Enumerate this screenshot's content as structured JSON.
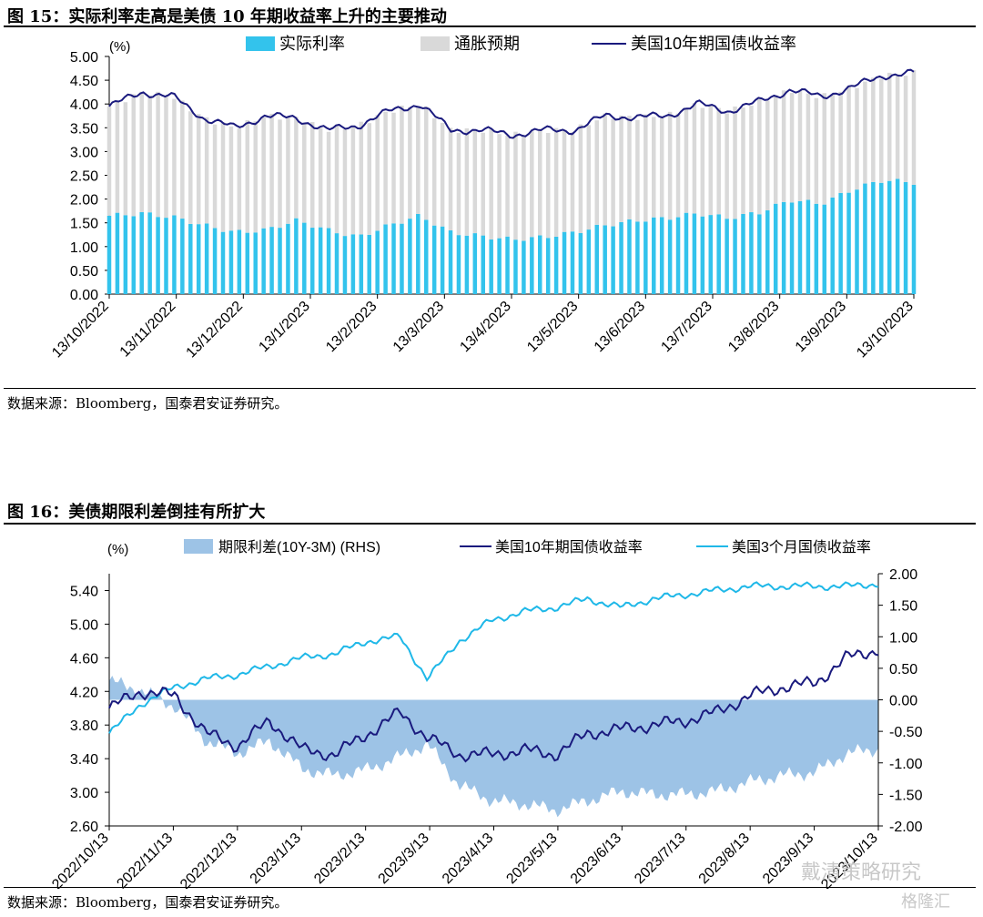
{
  "figure1": {
    "title": "图 15：实际利率走高是美债 10 年期收益率上升的主要推动",
    "source": "数据来源：Bloomberg，国泰君安证券研究。",
    "chart_data": {
      "type": "bar",
      "unit_label": "(%)",
      "ylim": [
        0,
        5
      ],
      "yticks": [
        "5.00",
        "4.50",
        "4.00",
        "3.50",
        "3.00",
        "2.50",
        "2.00",
        "1.50",
        "1.00",
        "0.50",
        "0.00"
      ],
      "xticks": [
        "13/10/2022",
        "13/11/2022",
        "13/12/2022",
        "13/1/2023",
        "13/2/2023",
        "13/3/2023",
        "13/4/2023",
        "13/5/2023",
        "13/6/2023",
        "13/7/2023",
        "13/8/2023",
        "13/9/2023",
        "13/10/2023"
      ],
      "legend": [
        "实际利率",
        "通胀预期",
        "美国10年期国债收益率"
      ],
      "colors": {
        "real": "#33c3ec",
        "inflation": "#d9d9d9",
        "yield": "#1a1a7e"
      },
      "x": [
        "2022-10-13",
        "2022-10-28",
        "2022-11-11",
        "2022-11-25",
        "2022-12-09",
        "2022-12-23",
        "2023-01-06",
        "2023-01-20",
        "2023-02-03",
        "2023-02-17",
        "2023-03-03",
        "2023-03-17",
        "2023-03-31",
        "2023-04-14",
        "2023-04-28",
        "2023-05-12",
        "2023-05-26",
        "2023-06-09",
        "2023-06-23",
        "2023-07-07",
        "2023-07-21",
        "2023-08-04",
        "2023-08-18",
        "2023-09-01",
        "2023-09-15",
        "2023-09-29",
        "2023-10-13"
      ],
      "series": [
        {
          "name": "实际利率",
          "values": [
            1.65,
            1.7,
            1.62,
            1.45,
            1.3,
            1.35,
            1.55,
            1.35,
            1.2,
            1.45,
            1.65,
            1.3,
            1.22,
            1.15,
            1.2,
            1.3,
            1.45,
            1.55,
            1.6,
            1.7,
            1.6,
            1.72,
            1.98,
            1.9,
            2.2,
            2.4,
            2.35
          ]
        },
        {
          "name": "美国10年期国债收益率",
          "values": [
            3.95,
            4.25,
            4.15,
            3.7,
            3.5,
            3.75,
            3.7,
            3.45,
            3.55,
            3.85,
            4.0,
            3.45,
            3.45,
            3.35,
            3.45,
            3.45,
            3.75,
            3.72,
            3.75,
            4.0,
            3.85,
            4.05,
            4.3,
            4.15,
            4.35,
            4.6,
            4.65
          ]
        }
      ]
    }
  },
  "figure2": {
    "title": "图 16：美债期限利差倒挂有所扩大",
    "source": "数据来源：Bloomberg，国泰君安证券研究。",
    "chart_data": {
      "type": "line",
      "unit_label": "(%)",
      "ylim": [
        2.6,
        5.6
      ],
      "y2lim": [
        -2.0,
        2.0
      ],
      "yticks": [
        "5.40",
        "5.00",
        "4.60",
        "4.20",
        "3.80",
        "3.40",
        "3.00",
        "2.60"
      ],
      "y2ticks": [
        "2.00",
        "1.50",
        "1.00",
        "0.50",
        "0.00",
        "-0.50",
        "-1.00",
        "-1.50",
        "-2.00"
      ],
      "xticks": [
        "2022/10/13",
        "2022/11/13",
        "2022/12/13",
        "2023/1/13",
        "2023/2/13",
        "2023/3/13",
        "2023/4/13",
        "2023/5/13",
        "2023/6/13",
        "2023/7/13",
        "2023/8/13",
        "2023/9/13",
        "2023/10/13"
      ],
      "legend": [
        "期限利差(10Y-3M)  (RHS)",
        "美国10年期国债收益率",
        "美国3个月国债收益率"
      ],
      "colors": {
        "spread": "#9dc3e6",
        "y10": "#1a1a7e",
        "y3m": "#1fb8e8"
      },
      "x": [
        "2022-10-13",
        "2022-10-28",
        "2022-11-13",
        "2022-11-28",
        "2022-12-13",
        "2022-12-28",
        "2023-01-13",
        "2023-01-28",
        "2023-02-13",
        "2023-02-28",
        "2023-03-13",
        "2023-03-28",
        "2023-04-13",
        "2023-04-28",
        "2023-05-13",
        "2023-05-28",
        "2023-06-13",
        "2023-06-28",
        "2023-07-13",
        "2023-07-28",
        "2023-08-13",
        "2023-08-28",
        "2023-09-13",
        "2023-09-28",
        "2023-10-13"
      ],
      "series": [
        {
          "name": "美国10年期国债收益率",
          "values": [
            4.0,
            4.2,
            4.15,
            3.7,
            3.55,
            3.85,
            3.5,
            3.45,
            3.7,
            3.95,
            3.65,
            3.45,
            3.45,
            3.5,
            3.45,
            3.7,
            3.75,
            3.8,
            3.85,
            3.95,
            4.15,
            4.25,
            4.3,
            4.6,
            4.7
          ]
        },
        {
          "name": "美国3个月国债收益率",
          "values": [
            3.7,
            4.05,
            4.25,
            4.35,
            4.4,
            4.5,
            4.6,
            4.65,
            4.8,
            4.85,
            4.35,
            4.8,
            5.05,
            5.15,
            5.2,
            5.3,
            5.2,
            5.3,
            5.35,
            5.4,
            5.45,
            5.45,
            5.45,
            5.45,
            5.48
          ]
        },
        {
          "name": "期限利差(10Y-3M)  (RHS)",
          "values": [
            0.3,
            0.15,
            -0.1,
            -0.65,
            -0.85,
            -0.65,
            -1.1,
            -1.2,
            -1.1,
            -0.9,
            -0.7,
            -1.35,
            -1.6,
            -1.65,
            -1.75,
            -1.6,
            -1.45,
            -1.5,
            -1.5,
            -1.45,
            -1.3,
            -1.2,
            -1.15,
            -0.85,
            -0.78
          ]
        }
      ]
    }
  },
  "watermark": {
    "brand": "戴清策略研究",
    "logo": "格隆汇"
  }
}
